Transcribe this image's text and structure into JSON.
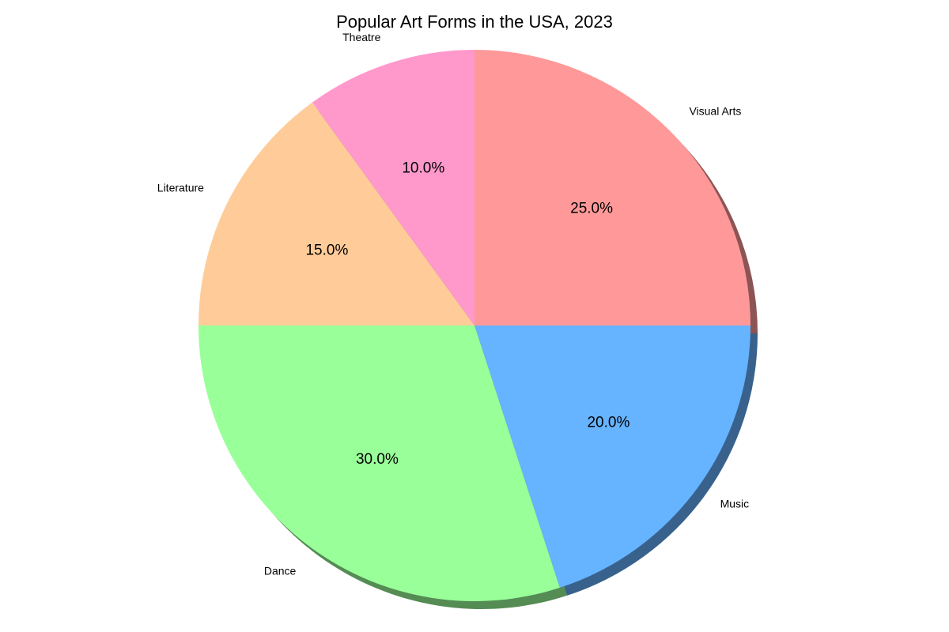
{
  "chart_data": {
    "type": "pie",
    "title": "Popular Art Forms in the USA, 2023",
    "categories": [
      "Visual Arts",
      "Music",
      "Dance",
      "Literature",
      "Theatre"
    ],
    "values": [
      25,
      20,
      30,
      15,
      10
    ],
    "percent_labels": [
      "25.0%",
      "20.0%",
      "30.0%",
      "15.0%",
      "10.0%"
    ],
    "colors": [
      "#ff9999",
      "#66b3ff",
      "#99ff99",
      "#ffcc99",
      "#ff99cc"
    ],
    "start_angle_deg": 90,
    "direction": "clockwise",
    "shadow": true,
    "legend": "none"
  }
}
